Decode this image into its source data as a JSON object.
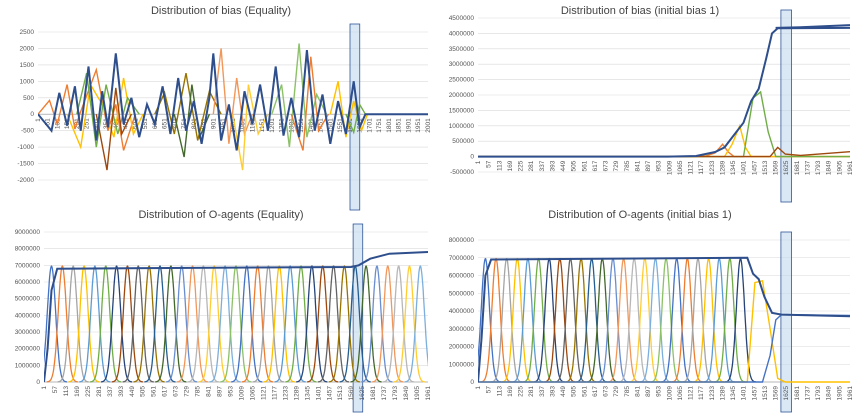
{
  "palette": [
    "#4472c4",
    "#ed7d31",
    "#a5a5a5",
    "#ffc000",
    "#5b9bd5",
    "#70ad47",
    "#264478",
    "#9e480e",
    "#636363",
    "#997300",
    "#255e91",
    "#43682b",
    "#698ed0",
    "#f1975a",
    "#b7b7b7",
    "#ffcd33",
    "#7cafdd",
    "#8cc168"
  ],
  "dark_series_color": "#2e4f8c",
  "highlight_color": "#bcd6ee",
  "chart_data": [
    {
      "type": "line",
      "title": "Distribution of bias (Equality)",
      "xlabel": "",
      "ylabel": "",
      "ylim": [
        -2000,
        2500
      ],
      "yticks": [
        2500,
        2000,
        1500,
        1000,
        500,
        0,
        -500,
        -1000,
        -1500,
        -2000
      ],
      "xticks": [
        "1",
        "51",
        "101",
        "151",
        "201",
        "251",
        "301",
        "351",
        "401",
        "451",
        "501",
        "551",
        "601",
        "651",
        "701",
        "751",
        "801",
        "851",
        "901",
        "951",
        "1001",
        "1051",
        "1101",
        "1151",
        "1201",
        "1251",
        "1301",
        "1351",
        "1401",
        "1451",
        "1501",
        "1551",
        "1601",
        "1651",
        "1701",
        "1751",
        "1801",
        "1851",
        "1901",
        "1951",
        "2001"
      ],
      "xlim": [
        1,
        2001
      ],
      "highlight_x": [
        1601,
        1651
      ],
      "grid": true,
      "series": [
        {
          "values": [
            [
              1,
              0
            ],
            [
              60,
              420
            ],
            [
              100,
              -300
            ],
            [
              150,
              900
            ],
            [
              190,
              -450
            ],
            [
              215,
              0
            ],
            [
              300,
              1350
            ],
            [
              360,
              -500
            ],
            [
              400,
              300
            ],
            [
              440,
              -1100
            ],
            [
              500,
              0
            ]
          ]
        },
        {
          "values": [
            [
              150,
              0
            ],
            [
              220,
              -1000
            ],
            [
              270,
              900
            ],
            [
              330,
              300
            ],
            [
              390,
              -700
            ],
            [
              440,
              1100
            ],
            [
              490,
              -600
            ],
            [
              540,
              0
            ]
          ]
        },
        {
          "values": [
            [
              200,
              0
            ],
            [
              250,
              1250
            ],
            [
              300,
              -1000
            ],
            [
              350,
              900
            ],
            [
              410,
              -600
            ],
            [
              460,
              500
            ],
            [
              520,
              0
            ]
          ]
        },
        {
          "values": [
            [
              300,
              0
            ],
            [
              355,
              -1700
            ],
            [
              400,
              800
            ],
            [
              430,
              -600
            ],
            [
              480,
              0
            ]
          ]
        },
        {
          "values": [
            [
              600,
              0
            ],
            [
              650,
              650
            ],
            [
              700,
              -600
            ],
            [
              760,
              1250
            ],
            [
              820,
              -800
            ],
            [
              880,
              700
            ],
            [
              940,
              0
            ]
          ]
        },
        {
          "values": [
            [
              700,
              0
            ],
            [
              750,
              -1300
            ],
            [
              790,
              900
            ],
            [
              830,
              -700
            ],
            [
              880,
              0
            ]
          ]
        },
        {
          "values": [
            [
              900,
              0
            ],
            [
              940,
              2000
            ],
            [
              980,
              -900
            ],
            [
              1020,
              1100
            ],
            [
              1060,
              -600
            ],
            [
              1100,
              0
            ]
          ]
        },
        {
          "values": [
            [
              1000,
              0
            ],
            [
              1050,
              -1700
            ],
            [
              1080,
              900
            ],
            [
              1130,
              -600
            ],
            [
              1180,
              0
            ]
          ]
        },
        {
          "values": [
            [
              1200,
              0
            ],
            [
              1250,
              900
            ],
            [
              1290,
              -1000
            ],
            [
              1340,
              2150
            ],
            [
              1380,
              -700
            ],
            [
              1430,
              600
            ],
            [
              1480,
              0
            ]
          ]
        },
        {
          "values": [
            [
              1300,
              0
            ],
            [
              1360,
              -1100
            ],
            [
              1400,
              1750
            ],
            [
              1440,
              -500
            ],
            [
              1490,
              0
            ]
          ]
        },
        {
          "values": [
            [
              1500,
              0
            ],
            [
              1540,
              1000
            ],
            [
              1580,
              -700
            ],
            [
              1620,
              400
            ],
            [
              1660,
              -500
            ],
            [
              1690,
              0
            ],
            [
              2001,
              0
            ]
          ]
        },
        {
          "values": [
            [
              1580,
              0
            ],
            [
              1620,
              -550
            ],
            [
              1650,
              300
            ],
            [
              1680,
              0
            ]
          ]
        }
      ],
      "dark_series": {
        "values": [
          [
            1,
            0
          ],
          [
            70,
            -500
          ],
          [
            110,
            650
          ],
          [
            150,
            -350
          ],
          [
            190,
            850
          ],
          [
            220,
            -500
          ],
          [
            260,
            1450
          ],
          [
            300,
            -800
          ],
          [
            330,
            700
          ],
          [
            360,
            -400
          ],
          [
            400,
            1850
          ],
          [
            440,
            -300
          ],
          [
            480,
            500
          ],
          [
            520,
            -700
          ],
          [
            560,
            300
          ],
          [
            600,
            -300
          ],
          [
            640,
            850
          ],
          [
            680,
            -600
          ],
          [
            720,
            1100
          ],
          [
            760,
            -500
          ],
          [
            800,
            400
          ],
          [
            840,
            -900
          ],
          [
            880,
            500
          ],
          [
            900,
            1850
          ],
          [
            940,
            -800
          ],
          [
            980,
            300
          ],
          [
            1020,
            -1100
          ],
          [
            1060,
            700
          ],
          [
            1100,
            -300
          ],
          [
            1140,
            900
          ],
          [
            1180,
            -500
          ],
          [
            1220,
            1450
          ],
          [
            1260,
            -650
          ],
          [
            1300,
            500
          ],
          [
            1340,
            -700
          ],
          [
            1380,
            1950
          ],
          [
            1420,
            -500
          ],
          [
            1460,
            600
          ],
          [
            1500,
            -900
          ],
          [
            1540,
            400
          ],
          [
            1580,
            -600
          ],
          [
            1620,
            1000
          ],
          [
            1650,
            -400
          ],
          [
            1680,
            0
          ],
          [
            2001,
            0
          ]
        ]
      }
    },
    {
      "type": "line",
      "title": "Distribution of bias (initial bias 1)",
      "xlabel": "",
      "ylabel": "",
      "ylim": [
        -500000,
        4500000
      ],
      "yticks": [
        4500000,
        4000000,
        3500000,
        3000000,
        2500000,
        2000000,
        1500000,
        1000000,
        500000,
        0,
        -500000
      ],
      "xticks": [
        "1",
        "57",
        "113",
        "169",
        "225",
        "281",
        "337",
        "393",
        "449",
        "505",
        "561",
        "617",
        "673",
        "729",
        "785",
        "841",
        "897",
        "953",
        "1009",
        "1065",
        "1121",
        "1177",
        "1233",
        "1289",
        "1345",
        "1401",
        "1457",
        "1513",
        "1569",
        "1625",
        "1681",
        "1737",
        "1793",
        "1849",
        "1905",
        "1961"
      ],
      "xlim": [
        1,
        1961
      ],
      "highlight_x": [
        1597,
        1653
      ],
      "grid": true,
      "series": [
        {
          "values": [
            [
              1,
              0
            ],
            [
              1100,
              0
            ],
            [
              1200,
              20000
            ],
            [
              1250,
              120000
            ],
            [
              1290,
              400000
            ],
            [
              1320,
              150000
            ],
            [
              1350,
              0
            ],
            [
              1961,
              0
            ]
          ]
        },
        {
          "values": [
            [
              1,
              0
            ],
            [
              1300,
              0
            ],
            [
              1340,
              400000
            ],
            [
              1380,
              1000000
            ],
            [
              1410,
              300000
            ],
            [
              1440,
              0
            ],
            [
              1961,
              0
            ]
          ]
        },
        {
          "values": [
            [
              1,
              0
            ],
            [
              1400,
              0
            ],
            [
              1450,
              1900000
            ],
            [
              1490,
              2100000
            ],
            [
              1530,
              800000
            ],
            [
              1570,
              0
            ],
            [
              1961,
              0
            ]
          ]
        },
        {
          "values": [
            [
              1,
              0
            ],
            [
              1540,
              0
            ],
            [
              1580,
              300000
            ],
            [
              1620,
              80000
            ],
            [
              1700,
              40000
            ],
            [
              1961,
              160000
            ]
          ]
        }
      ],
      "dark_series": {
        "values": [
          [
            1,
            0
          ],
          [
            1000,
            0
          ],
          [
            1150,
            20000
          ],
          [
            1250,
            150000
          ],
          [
            1300,
            300000
          ],
          [
            1350,
            700000
          ],
          [
            1400,
            1100000
          ],
          [
            1440,
            1800000
          ],
          [
            1480,
            2200000
          ],
          [
            1520,
            3200000
          ],
          [
            1550,
            4000000
          ],
          [
            1580,
            4170000
          ],
          [
            1961,
            4180000
          ]
        ]
      },
      "dark_series_2": {
        "values": [
          [
            1569,
            4180000
          ],
          [
            1700,
            4200000
          ],
          [
            1961,
            4270000
          ]
        ]
      }
    },
    {
      "type": "line",
      "title": "Distribution of O-agents (Equality)",
      "xlabel": "",
      "ylabel": "",
      "ylim": [
        0,
        9000000
      ],
      "yticks": [
        9000000,
        8000000,
        7000000,
        6000000,
        5000000,
        4000000,
        3000000,
        2000000,
        1000000,
        0
      ],
      "xticks": [
        "1",
        "57",
        "113",
        "169",
        "225",
        "281",
        "337",
        "393",
        "449",
        "505",
        "561",
        "617",
        "673",
        "729",
        "785",
        "841",
        "897",
        "953",
        "1009",
        "1065",
        "1121",
        "1177",
        "1233",
        "1289",
        "1345",
        "1401",
        "1457",
        "1513",
        "1569",
        "1625",
        "1681",
        "1737",
        "1793",
        "1849",
        "1905",
        "1961"
      ],
      "xlim": [
        1,
        2001
      ],
      "highlight_x": [
        1611,
        1661
      ],
      "grid": true,
      "bell": {
        "start": 40,
        "spacing": 56.5,
        "count": 35,
        "peak": 6950000,
        "width": 58
      },
      "dark_series": {
        "values": [
          [
            1,
            0
          ],
          [
            20,
            2000000
          ],
          [
            40,
            5500000
          ],
          [
            70,
            6800000
          ],
          [
            1600,
            6900000
          ],
          [
            1640,
            7000000
          ],
          [
            1700,
            7400000
          ],
          [
            1800,
            7700000
          ],
          [
            2001,
            7800000
          ]
        ]
      }
    },
    {
      "type": "line",
      "title": "Distribution of O-agents (initial bias 1)",
      "xlabel": "",
      "ylabel": "",
      "ylim": [
        0,
        8000000
      ],
      "yticks": [
        8000000,
        7000000,
        6000000,
        5000000,
        4000000,
        3000000,
        2000000,
        1000000,
        0
      ],
      "xticks": [
        "1",
        "57",
        "113",
        "169",
        "225",
        "281",
        "337",
        "393",
        "449",
        "505",
        "561",
        "617",
        "673",
        "729",
        "785",
        "841",
        "897",
        "953",
        "1009",
        "1065",
        "1121",
        "1177",
        "1233",
        "1289",
        "1345",
        "1401",
        "1457",
        "1513",
        "1569",
        "1625",
        "1681",
        "1737",
        "1793",
        "1849",
        "1905",
        "1961"
      ],
      "xlim": [
        1,
        1961
      ],
      "highlight_x": [
        1597,
        1653
      ],
      "grid": true,
      "bell": {
        "start": 40,
        "spacing": 56,
        "count": 25,
        "peak": 6950000,
        "width": 58
      },
      "tail_series": [
        {
          "values": [
            [
              1,
              0
            ],
            [
              1420,
              0
            ],
            [
              1460,
              5600000
            ],
            [
              1500,
              5700000
            ],
            [
              1540,
              3000000
            ],
            [
              1580,
              200000
            ],
            [
              1620,
              0
            ],
            [
              1961,
              0
            ]
          ]
        },
        {
          "values": [
            [
              1,
              0
            ],
            [
              1500,
              0
            ],
            [
              1540,
              1500000
            ],
            [
              1570,
              3500000
            ],
            [
              1600,
              3800000
            ],
            [
              1961,
              3750000
            ]
          ]
        }
      ],
      "dark_series": {
        "values": [
          [
            1,
            0
          ],
          [
            20,
            2500000
          ],
          [
            40,
            6000000
          ],
          [
            70,
            6900000
          ],
          [
            1420,
            7000000
          ],
          [
            1450,
            6100000
          ],
          [
            1480,
            5800000
          ],
          [
            1510,
            4800000
          ],
          [
            1550,
            3900000
          ],
          [
            1600,
            3800000
          ],
          [
            1961,
            3700000
          ]
        ]
      }
    }
  ]
}
